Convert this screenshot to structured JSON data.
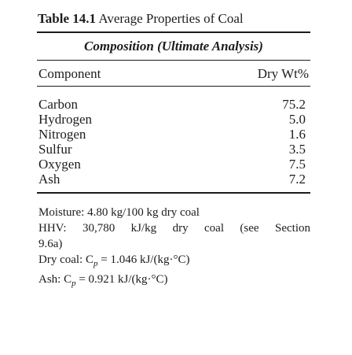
{
  "table": {
    "number": "Table 14.1",
    "title": "Average Properties of Coal",
    "section_heading": "Composition (Ultimate Analysis)",
    "columns": {
      "component": "Component",
      "value": "Dry Wt%"
    },
    "rows": [
      {
        "component": "Carbon",
        "value": "75.2"
      },
      {
        "component": "Hydrogen",
        "value": "5.0"
      },
      {
        "component": "Nitrogen",
        "value": "1.6"
      },
      {
        "component": "Sulfur",
        "value": "3.5"
      },
      {
        "component": "Oxygen",
        "value": "7.5"
      },
      {
        "component": "Ash",
        "value": "7.2"
      }
    ],
    "notes": {
      "moisture": "Moisture: 4.80 kg/100 kg dry coal",
      "hhv": [
        "HHV:",
        "30,780",
        "kJ/kg",
        "dry",
        "coal",
        "(see",
        "Section"
      ],
      "hhv_cont": "9.6a)",
      "dry_coal": "Dry coal: C",
      "dry_coal_sub": "p",
      "dry_coal_val": " = 1.046 kJ/(kg·°C)",
      "ash": "Ash: C",
      "ash_sub": "p",
      "ash_val": " = 0.921 kJ/(kg·°C)"
    }
  }
}
